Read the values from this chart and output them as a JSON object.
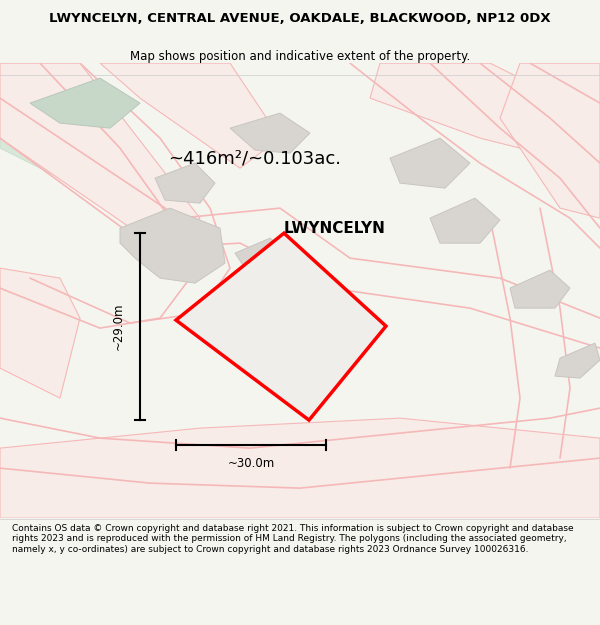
{
  "title_line1": "LWYNCELYN, CENTRAL AVENUE, OAKDALE, BLACKWOOD, NP12 0DX",
  "title_line2": "Map shows position and indicative extent of the property.",
  "area_text": "~416m²/~0.103ac.",
  "property_name": "LWYNCELYN",
  "dim_width": "~30.0m",
  "dim_height": "~29.0m",
  "copyright_text": "Contains OS data © Crown copyright and database right 2021. This information is subject to Crown copyright and database rights 2023 and is reproduced with the permission of HM Land Registry. The polygons (including the associated geometry, namely x, y co-ordinates) are subject to Crown copyright and database rights 2023 Ordnance Survey 100026316.",
  "bg_color": "#f5f5f0",
  "map_bg": "#f0eeea",
  "road_color": "#f5b8b8",
  "road_fill": "#f5f0f0",
  "building_color": "#d8d5d0",
  "building_edge": "#c8c5c0",
  "property_fill": "#e8e5e0",
  "property_edge": "#ff0000",
  "dim_line_color": "#000000",
  "title_color": "#000000",
  "text_color": "#000000"
}
